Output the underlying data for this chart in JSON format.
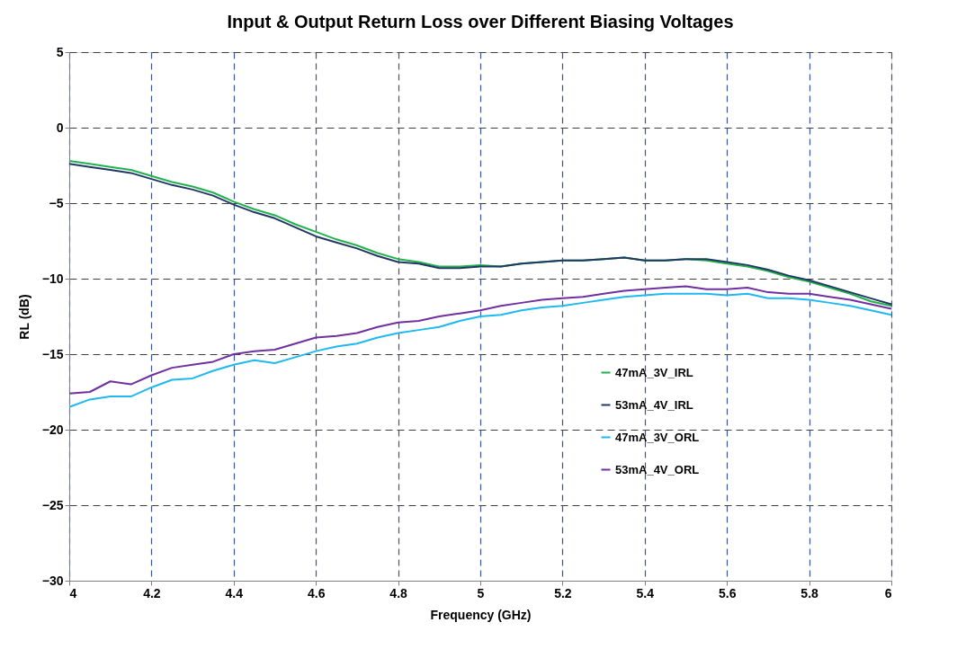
{
  "chart_data": {
    "type": "line",
    "title": "Input & Output Return Loss over Different Biasing Voltages",
    "xlabel": "Frequency (GHz)",
    "ylabel": "RL (dB)",
    "x": [
      4.0,
      4.05,
      4.1,
      4.15,
      4.2,
      4.25,
      4.3,
      4.35,
      4.4,
      4.45,
      4.5,
      4.55,
      4.6,
      4.65,
      4.7,
      4.75,
      4.8,
      4.85,
      4.9,
      4.95,
      5.0,
      5.05,
      5.1,
      5.15,
      5.2,
      5.25,
      5.3,
      5.35,
      5.4,
      5.45,
      5.5,
      5.55,
      5.6,
      5.65,
      5.7,
      5.75,
      5.8,
      5.85,
      5.9,
      5.95,
      6.0
    ],
    "series": [
      {
        "name": "47mA_3V_IRL",
        "color": "#22b14c",
        "values": [
          -2.2,
          -2.4,
          -2.6,
          -2.8,
          -3.2,
          -3.6,
          -3.9,
          -4.3,
          -4.9,
          -5.4,
          -5.8,
          -6.4,
          -6.9,
          -7.4,
          -7.8,
          -8.3,
          -8.7,
          -8.9,
          -9.2,
          -9.2,
          -9.1,
          -9.2,
          -9.0,
          -8.9,
          -8.8,
          -8.8,
          -8.7,
          -8.6,
          -8.8,
          -8.8,
          -8.7,
          -8.8,
          -9.0,
          -9.2,
          -9.5,
          -9.9,
          -10.2,
          -10.6,
          -11.0,
          -11.5,
          -11.8
        ]
      },
      {
        "name": "53mA_4V_IRL",
        "color": "#1f3864",
        "values": [
          -2.4,
          -2.6,
          -2.8,
          -3.0,
          -3.4,
          -3.8,
          -4.1,
          -4.5,
          -5.1,
          -5.6,
          -6.0,
          -6.6,
          -7.2,
          -7.6,
          -8.0,
          -8.5,
          -8.9,
          -9.0,
          -9.3,
          -9.3,
          -9.2,
          -9.2,
          -9.0,
          -8.9,
          -8.8,
          -8.8,
          -8.7,
          -8.6,
          -8.8,
          -8.8,
          -8.7,
          -8.7,
          -8.9,
          -9.1,
          -9.4,
          -9.8,
          -10.1,
          -10.5,
          -10.9,
          -11.3,
          -11.7
        ]
      },
      {
        "name": "47mA_3V_ORL",
        "color": "#1fb8f0",
        "values": [
          -18.5,
          -18.0,
          -17.8,
          -17.8,
          -17.2,
          -16.7,
          -16.6,
          -16.1,
          -15.7,
          -15.4,
          -15.6,
          -15.2,
          -14.8,
          -14.5,
          -14.3,
          -13.9,
          -13.6,
          -13.4,
          -13.2,
          -12.8,
          -12.5,
          -12.4,
          -12.1,
          -11.9,
          -11.8,
          -11.6,
          -11.4,
          -11.2,
          -11.1,
          -11.0,
          -11.0,
          -11.0,
          -11.1,
          -11.0,
          -11.3,
          -11.3,
          -11.4,
          -11.6,
          -11.8,
          -12.1,
          -12.4
        ]
      },
      {
        "name": "53mA_4V_ORL",
        "color": "#7030a0",
        "values": [
          -17.6,
          -17.5,
          -16.8,
          -17.0,
          -16.4,
          -15.9,
          -15.7,
          -15.5,
          -15.0,
          -14.8,
          -14.7,
          -14.3,
          -13.9,
          -13.8,
          -13.6,
          -13.2,
          -12.9,
          -12.8,
          -12.5,
          -12.3,
          -12.1,
          -11.8,
          -11.6,
          -11.4,
          -11.3,
          -11.2,
          -11.0,
          -10.8,
          -10.7,
          -10.6,
          -10.5,
          -10.7,
          -10.7,
          -10.6,
          -10.9,
          -11.0,
          -11.0,
          -11.2,
          -11.4,
          -11.7,
          -12.0
        ]
      }
    ],
    "xlim": [
      4,
      6
    ],
    "xticks": [
      4,
      4.2,
      4.4,
      4.6,
      4.8,
      5,
      5.2,
      5.4,
      5.6,
      5.8,
      6
    ],
    "ylim": [
      -30,
      5
    ],
    "yticks": [
      -30,
      -25,
      -20,
      -15,
      -10,
      -5,
      0,
      5
    ],
    "grid": true,
    "line_style": "solid",
    "marker": "none",
    "legend": "right"
  }
}
